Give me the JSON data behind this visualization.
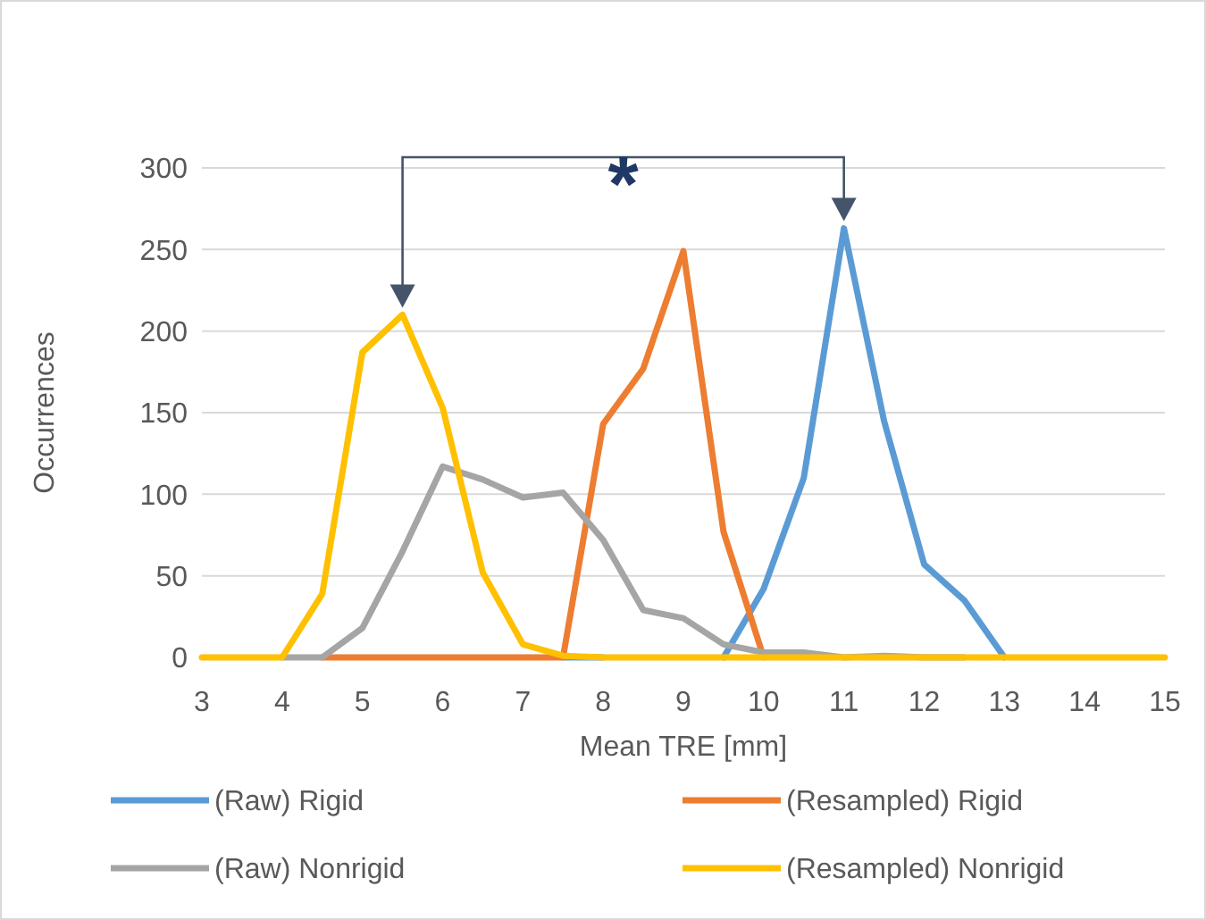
{
  "chart_data": {
    "type": "line",
    "xlabel": "Mean TRE [mm]",
    "ylabel": "Occurrences",
    "x": [
      3,
      3.5,
      4,
      4.5,
      5,
      5.5,
      6,
      6.5,
      7,
      7.5,
      8,
      8.5,
      9,
      9.5,
      10,
      10.5,
      11,
      11.5,
      12,
      12.5,
      13,
      13.5,
      14,
      14.5,
      15
    ],
    "series": [
      {
        "name": "(Raw) Rigid",
        "color": "#5b9bd5",
        "values": [
          null,
          null,
          null,
          null,
          null,
          null,
          null,
          null,
          null,
          0,
          0,
          null,
          null,
          0,
          42,
          110,
          263,
          145,
          57,
          35,
          0,
          null,
          null,
          null,
          null
        ]
      },
      {
        "name": "(Resampled) Rigid",
        "color": "#ed7d31",
        "values": [
          null,
          null,
          null,
          0,
          0,
          0,
          0,
          0,
          0,
          0,
          143,
          177,
          249,
          77,
          0,
          null,
          null,
          null,
          null,
          null,
          null,
          null,
          null,
          null,
          null
        ]
      },
      {
        "name": "(Raw) Nonrigid",
        "color": "#a5a5a5",
        "values": [
          null,
          null,
          0,
          0,
          18,
          65,
          117,
          109,
          98,
          101,
          72,
          29,
          24,
          8,
          3,
          3,
          0,
          1,
          0,
          0,
          null,
          null,
          null,
          null,
          null
        ]
      },
      {
        "name": "(Resampled) Nonrigid",
        "color": "#ffc000",
        "values": [
          0,
          0,
          0,
          39,
          187,
          210,
          153,
          52,
          8,
          1,
          0,
          0,
          0,
          0,
          0,
          0,
          0,
          0,
          0,
          0,
          0,
          0,
          0,
          0,
          0
        ]
      }
    ],
    "xlim": [
      3,
      15
    ],
    "xticks": [
      3,
      4,
      5,
      6,
      7,
      8,
      9,
      10,
      11,
      12,
      13,
      14,
      15
    ],
    "ylim": [
      0,
      300
    ],
    "yticks": [
      0,
      50,
      100,
      150,
      200,
      250,
      300
    ],
    "grid": "y",
    "legend": "bottom",
    "marker": "none",
    "line_style": "solid",
    "annotations": [
      "*"
    ]
  }
}
